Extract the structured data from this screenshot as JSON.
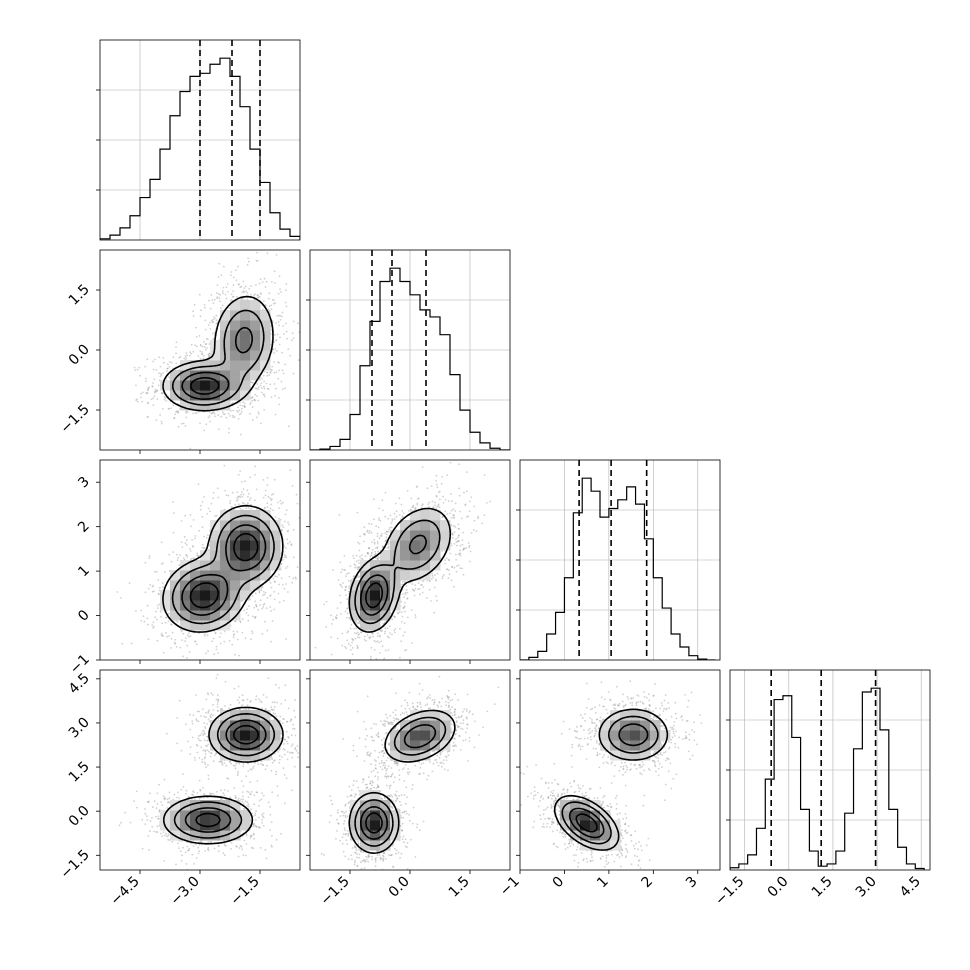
{
  "chart_data": {
    "type": "corner",
    "grid": true,
    "parameters": [
      {
        "range": [
          -5.5,
          -0.5
        ],
        "ticks": [
          -4.5,
          -3.0,
          -1.5
        ],
        "tick_labels": [
          "−4.5",
          "−3.0",
          "−1.5"
        ]
      },
      {
        "range": [
          -2.5,
          2.5
        ],
        "ticks": [
          -1.5,
          0.0,
          1.5
        ],
        "tick_labels": [
          "−1.5",
          "0.0",
          "1.5"
        ]
      },
      {
        "range": [
          -1.0,
          3.5
        ],
        "ticks": [
          -1,
          0,
          1,
          2,
          3
        ],
        "tick_labels": [
          "−1",
          "0",
          "1",
          "2",
          "3"
        ]
      },
      {
        "range": [
          -2.0,
          4.8
        ],
        "ticks": [
          -1.5,
          0.0,
          1.5,
          3.0,
          4.5
        ],
        "tick_labels": [
          "−1.5",
          "0.0",
          "1.5",
          "3.0",
          "4.5"
        ]
      }
    ],
    "histograms": [
      {
        "bin_edges": [
          -5.5,
          -5.25,
          -5.0,
          -4.75,
          -4.5,
          -4.25,
          -4.0,
          -3.75,
          -3.5,
          -3.25,
          -3.0,
          -2.75,
          -2.5,
          -2.25,
          -2.0,
          -1.75,
          -1.5,
          -1.25,
          -1.0,
          -0.75,
          -0.5
        ],
        "counts": [
          2,
          8,
          20,
          40,
          70,
          100,
          150,
          205,
          245,
          270,
          275,
          290,
          300,
          270,
          220,
          150,
          95,
          45,
          18,
          6
        ],
        "quantiles": [
          -3.0,
          -2.2,
          -1.5
        ]
      },
      {
        "bin_edges": [
          -2.5,
          -2.25,
          -2.0,
          -1.75,
          -1.5,
          -1.25,
          -1.0,
          -0.75,
          -0.5,
          -0.25,
          0.0,
          0.25,
          0.5,
          0.75,
          1.0,
          1.25,
          1.5,
          1.75,
          2.0,
          2.25,
          2.5
        ],
        "counts": [
          0,
          1,
          4,
          12,
          40,
          95,
          145,
          190,
          205,
          190,
          175,
          158,
          150,
          130,
          85,
          45,
          20,
          8,
          2,
          0
        ],
        "quantiles": [
          -0.95,
          -0.45,
          0.4
        ]
      },
      {
        "bin_edges": [
          -1.0,
          -0.8,
          -0.6,
          -0.4,
          -0.2,
          0.0,
          0.2,
          0.4,
          0.6,
          0.8,
          1.0,
          1.2,
          1.4,
          1.6,
          1.8,
          2.0,
          2.2,
          2.4,
          2.6,
          2.8,
          3.0,
          3.2,
          3.4
        ],
        "counts": [
          0,
          3,
          10,
          30,
          55,
          95,
          170,
          210,
          195,
          165,
          175,
          185,
          200,
          180,
          140,
          95,
          60,
          30,
          15,
          5,
          1,
          0
        ],
        "quantiles": [
          0.33,
          1.05,
          1.85
        ]
      },
      {
        "bin_edges": [
          -2.0,
          -1.7,
          -1.4,
          -1.1,
          -0.8,
          -0.5,
          -0.2,
          0.1,
          0.4,
          0.7,
          1.0,
          1.3,
          1.6,
          1.9,
          2.2,
          2.5,
          2.8,
          3.1,
          3.4,
          3.7,
          4.0,
          4.3,
          4.6
        ],
        "counts": [
          3,
          8,
          20,
          55,
          120,
          225,
          230,
          175,
          80,
          25,
          5,
          8,
          25,
          75,
          160,
          235,
          240,
          185,
          80,
          30,
          8,
          2
        ],
        "quantiles": [
          -0.6,
          1.1,
          2.95
        ]
      }
    ],
    "pairs": [
      {
        "row": 1,
        "col": 0,
        "modes": [
          {
            "mean": [
              -2.9,
              -0.9
            ],
            "sd": [
              0.5,
              0.3
            ],
            "rho": 0.0,
            "weight": 0.5
          },
          {
            "mean": [
              -1.9,
              0.25
            ],
            "sd": [
              0.4,
              0.6
            ],
            "rho": 0.1,
            "weight": 0.5
          }
        ]
      },
      {
        "row": 2,
        "col": 0,
        "modes": [
          {
            "mean": [
              -2.9,
              0.45
            ],
            "sd": [
              0.5,
              0.4
            ],
            "rho": 0.1,
            "weight": 0.5
          },
          {
            "mean": [
              -1.85,
              1.55
            ],
            "sd": [
              0.45,
              0.45
            ],
            "rho": 0.0,
            "weight": 0.5
          }
        ]
      },
      {
        "row": 2,
        "col": 1,
        "modes": [
          {
            "mean": [
              -0.9,
              0.45
            ],
            "sd": [
              0.3,
              0.4
            ],
            "rho": 0.2,
            "weight": 0.5
          },
          {
            "mean": [
              0.2,
              1.6
            ],
            "sd": [
              0.45,
              0.45
            ],
            "rho": 0.3,
            "weight": 0.5
          }
        ]
      },
      {
        "row": 3,
        "col": 0,
        "modes": [
          {
            "mean": [
              -2.8,
              -0.3
            ],
            "sd": [
              0.55,
              0.4
            ],
            "rho": 0.0,
            "weight": 0.5
          },
          {
            "mean": [
              -1.85,
              2.6
            ],
            "sd": [
              0.45,
              0.45
            ],
            "rho": 0.0,
            "weight": 0.5
          }
        ]
      },
      {
        "row": 3,
        "col": 1,
        "modes": [
          {
            "mean": [
              -0.9,
              -0.4
            ],
            "sd": [
              0.3,
              0.5
            ],
            "rho": 0.0,
            "weight": 0.5
          },
          {
            "mean": [
              0.25,
              2.55
            ],
            "sd": [
              0.45,
              0.45
            ],
            "rho": 0.35,
            "weight": 0.5
          }
        ]
      },
      {
        "row": 3,
        "col": 2,
        "modes": [
          {
            "mean": [
              0.5,
              -0.4
            ],
            "sd": [
              0.35,
              0.45
            ],
            "rho": -0.5,
            "weight": 0.5
          },
          {
            "mean": [
              1.55,
              2.6
            ],
            "sd": [
              0.4,
              0.45
            ],
            "rho": 0.0,
            "weight": 0.5
          }
        ]
      }
    ],
    "contour_levels_sigma": [
      0.5,
      1.0,
      1.5,
      2.0
    ]
  }
}
